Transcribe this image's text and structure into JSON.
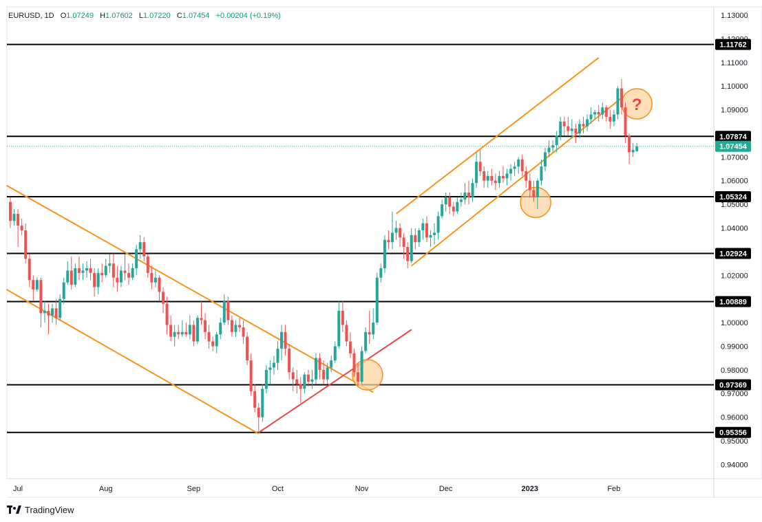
{
  "legend": {
    "symbol": "EURUSD, 1D",
    "o_label": "O",
    "o_value": "1.07249",
    "h_label": "H",
    "h_value": "1.07602",
    "l_label": "L",
    "l_value": "1.07220",
    "c_label": "C",
    "c_value": "1.07454",
    "change": "+0.00204 (+0.19%)"
  },
  "brand": {
    "name": "TradingView",
    "icon": "tradingview-logo-icon"
  },
  "colors": {
    "up": "#26a69a",
    "down": "#ef5350",
    "channel": "#f7931a",
    "trendline": "#e84545",
    "level": "#000000",
    "circle_fill": "#fbd3a1",
    "circle_stroke": "#f7931a",
    "question": "#e84545",
    "current_price": "#22ab94"
  },
  "chart_data": {
    "type": "candlestick",
    "symbol": "EURUSD",
    "timeframe": "1D",
    "ylim": [
      0.934,
      1.1335
    ],
    "y_ticks": [
      "1.13000",
      "1.12000",
      "1.11000",
      "1.10000",
      "1.09000",
      "1.07000",
      "1.06000",
      "1.05000",
      "1.04000",
      "1.02000",
      "1.00000",
      "0.99000",
      "0.98000",
      "0.97000",
      "0.96000",
      "0.95000",
      "0.94000"
    ],
    "x_labels": [
      {
        "label": "Jul",
        "index": 0
      },
      {
        "label": "Aug",
        "index": 23
      },
      {
        "label": "Sep",
        "index": 46
      },
      {
        "label": "Oct",
        "index": 68
      },
      {
        "label": "Nov",
        "index": 90
      },
      {
        "label": "Dec",
        "index": 112
      },
      {
        "label": "2023",
        "index": 134
      },
      {
        "label": "Feb",
        "index": 156
      }
    ],
    "x_count": 176,
    "levels": [
      {
        "label": "1.11762",
        "value": 1.11762
      },
      {
        "label": "1.07874",
        "value": 1.07874
      },
      {
        "label": "1.05324",
        "value": 1.05324
      },
      {
        "label": "1.02924",
        "value": 1.02924
      },
      {
        "label": "1.00889",
        "value": 1.00889
      },
      {
        "label": "0.97369",
        "value": 0.97369
      },
      {
        "label": "0.95356",
        "value": 0.95356
      }
    ],
    "current_price": {
      "label": "1.07454",
      "value": 1.07454
    },
    "trend_lines": [
      {
        "kind": "channel",
        "x1": -1,
        "y1": 1.058,
        "x2": 95,
        "y2": 0.9705
      },
      {
        "kind": "channel",
        "x1": -1,
        "y1": 1.014,
        "x2": 65,
        "y2": 0.953
      },
      {
        "kind": "channel",
        "x1": 101,
        "y1": 1.046,
        "x2": 154,
        "y2": 1.112
      },
      {
        "kind": "channel",
        "x1": 105,
        "y1": 1.024,
        "x2": 160,
        "y2": 1.095
      },
      {
        "kind": "trend",
        "x1": 65,
        "y1": 0.9535,
        "x2": 105,
        "y2": 0.997
      }
    ],
    "circles": [
      {
        "x": 93.5,
        "y": 0.9779,
        "label": ""
      },
      {
        "x": 137.5,
        "y": 1.0508,
        "label": ""
      },
      {
        "x": 164,
        "y": 1.0925,
        "label": "?"
      }
    ],
    "candles": [
      [
        1.051,
        1.053,
        1.04,
        1.043
      ],
      [
        1.043,
        1.048,
        1.041,
        1.046
      ],
      [
        1.046,
        1.048,
        1.032,
        1.041
      ],
      [
        1.041,
        1.044,
        1.037,
        1.039
      ],
      [
        1.039,
        1.042,
        1.025,
        1.027
      ],
      [
        1.027,
        1.029,
        1.015,
        1.018
      ],
      [
        1.018,
        1.02,
        1.009,
        1.014
      ],
      [
        1.014,
        1.019,
        1.013,
        1.018
      ],
      [
        1.018,
        1.019,
        0.998,
        1.004
      ],
      [
        1.004,
        1.009,
        1.0,
        1.005
      ],
      [
        1.005,
        1.008,
        0.995,
        1.003
      ],
      [
        1.003,
        1.008,
        1.0,
        1.006
      ],
      [
        1.006,
        1.01,
        0.999,
        1.002
      ],
      [
        1.002,
        1.012,
        1.001,
        1.01
      ],
      [
        1.01,
        1.019,
        1.008,
        1.017
      ],
      [
        1.017,
        1.026,
        1.016,
        1.022
      ],
      [
        1.022,
        1.028,
        1.014,
        1.016
      ],
      [
        1.016,
        1.025,
        1.015,
        1.023
      ],
      [
        1.023,
        1.028,
        1.018,
        1.021
      ],
      [
        1.021,
        1.025,
        1.018,
        1.022
      ],
      [
        1.022,
        1.026,
        1.019,
        1.023
      ],
      [
        1.023,
        1.027,
        1.018,
        1.021
      ],
      [
        1.021,
        1.023,
        1.011,
        1.015
      ],
      [
        1.015,
        1.023,
        1.012,
        1.021
      ],
      [
        1.021,
        1.025,
        1.017,
        1.02
      ],
      [
        1.02,
        1.027,
        1.019,
        1.024
      ],
      [
        1.024,
        1.029,
        1.021,
        1.025
      ],
      [
        1.025,
        1.029,
        1.015,
        1.019
      ],
      [
        1.019,
        1.024,
        1.013,
        1.017
      ],
      [
        1.017,
        1.024,
        1.015,
        1.022
      ],
      [
        1.022,
        1.029,
        1.018,
        1.021
      ],
      [
        1.021,
        1.025,
        1.016,
        1.019
      ],
      [
        1.019,
        1.025,
        1.018,
        1.023
      ],
      [
        1.023,
        1.033,
        1.02,
        1.031
      ],
      [
        1.031,
        1.037,
        1.027,
        1.034
      ],
      [
        1.034,
        1.036,
        1.026,
        1.028
      ],
      [
        1.028,
        1.029,
        1.019,
        1.021
      ],
      [
        1.021,
        1.024,
        1.014,
        1.017
      ],
      [
        1.017,
        1.022,
        1.015,
        1.019
      ],
      [
        1.019,
        1.02,
        1.009,
        1.013
      ],
      [
        1.013,
        1.015,
        1.004,
        1.008
      ],
      [
        1.008,
        1.011,
        0.995,
        0.999
      ],
      [
        0.999,
        1.003,
        0.992,
        0.994
      ],
      [
        0.994,
        0.999,
        0.99,
        0.996
      ],
      [
        0.996,
        0.999,
        0.993,
        0.995
      ],
      [
        0.995,
        1.001,
        0.994,
        0.996
      ],
      [
        0.996,
        1.0,
        0.994,
        0.995
      ],
      [
        0.995,
        1.003,
        0.993,
        0.999
      ],
      [
        0.999,
        1.001,
        0.99,
        0.992
      ],
      [
        0.992,
        1.003,
        0.991,
        1.002
      ],
      [
        1.002,
        1.009,
        0.999,
        1.001
      ],
      [
        1.001,
        1.004,
        0.993,
        0.996
      ],
      [
        0.996,
        0.999,
        0.989,
        0.992
      ],
      [
        0.992,
        0.994,
        0.988,
        0.99
      ],
      [
        0.99,
        0.996,
        0.987,
        0.995
      ],
      [
        0.995,
        1.002,
        0.993,
        1.0
      ],
      [
        1.0,
        1.012,
        0.999,
        1.009
      ],
      [
        1.009,
        1.011,
        0.999,
        1.001
      ],
      [
        1.001,
        1.003,
        0.994,
        0.996
      ],
      [
        0.996,
        1.001,
        0.994,
        0.999
      ],
      [
        0.999,
        1.002,
        0.996,
        0.998
      ],
      [
        0.998,
        1.001,
        0.991,
        0.994
      ],
      [
        0.994,
        0.996,
        0.982,
        0.984
      ],
      [
        0.984,
        0.987,
        0.969,
        0.971
      ],
      [
        0.971,
        0.974,
        0.962,
        0.964
      ],
      [
        0.964,
        0.966,
        0.954,
        0.96
      ],
      [
        0.96,
        0.974,
        0.958,
        0.972
      ],
      [
        0.972,
        0.982,
        0.97,
        0.98
      ],
      [
        0.98,
        0.984,
        0.974,
        0.981
      ],
      [
        0.981,
        0.986,
        0.978,
        0.983
      ],
      [
        0.983,
        0.992,
        0.98,
        0.989
      ],
      [
        0.989,
        0.999,
        0.984,
        0.996
      ],
      [
        0.996,
        0.999,
        0.986,
        0.989
      ],
      [
        0.989,
        0.991,
        0.976,
        0.979
      ],
      [
        0.979,
        0.981,
        0.971,
        0.976
      ],
      [
        0.976,
        0.98,
        0.97,
        0.974
      ],
      [
        0.974,
        0.977,
        0.966,
        0.972
      ],
      [
        0.972,
        0.979,
        0.97,
        0.978
      ],
      [
        0.978,
        0.98,
        0.973,
        0.975
      ],
      [
        0.975,
        0.98,
        0.972,
        0.976
      ],
      [
        0.976,
        0.987,
        0.974,
        0.985
      ],
      [
        0.985,
        0.987,
        0.976,
        0.98
      ],
      [
        0.98,
        0.984,
        0.974,
        0.976
      ],
      [
        0.976,
        0.983,
        0.974,
        0.981
      ],
      [
        0.981,
        0.986,
        0.979,
        0.984
      ],
      [
        0.984,
        0.992,
        0.983,
        0.99
      ],
      [
        0.99,
        1.009,
        0.989,
        1.005
      ],
      [
        1.005,
        1.009,
        0.996,
        0.999
      ],
      [
        0.999,
        1.001,
        0.99,
        0.992
      ],
      [
        0.992,
        0.996,
        0.985,
        0.987
      ],
      [
        0.987,
        0.989,
        0.977,
        0.979
      ],
      [
        0.979,
        0.983,
        0.973,
        0.975
      ],
      [
        0.975,
        0.99,
        0.974,
        0.988
      ],
      [
        0.988,
        0.998,
        0.987,
        0.996
      ],
      [
        0.996,
        1.005,
        0.991,
        0.995
      ],
      [
        0.995,
        1.006,
        0.993,
        1.0
      ],
      [
        1.0,
        1.021,
        0.999,
        1.019
      ],
      [
        1.019,
        1.025,
        1.017,
        1.023
      ],
      [
        1.023,
        1.037,
        1.021,
        1.035
      ],
      [
        1.035,
        1.039,
        1.031,
        1.034
      ],
      [
        1.034,
        1.047,
        1.031,
        1.038
      ],
      [
        1.038,
        1.043,
        1.035,
        1.04
      ],
      [
        1.04,
        1.042,
        1.032,
        1.036
      ],
      [
        1.036,
        1.038,
        1.027,
        1.032
      ],
      [
        1.032,
        1.034,
        1.023,
        1.026
      ],
      [
        1.026,
        1.04,
        1.025,
        1.037
      ],
      [
        1.037,
        1.04,
        1.031,
        1.034
      ],
      [
        1.034,
        1.04,
        1.032,
        1.039
      ],
      [
        1.039,
        1.044,
        1.035,
        1.042
      ],
      [
        1.042,
        1.045,
        1.034,
        1.036
      ],
      [
        1.036,
        1.039,
        1.032,
        1.037
      ],
      [
        1.037,
        1.042,
        1.033,
        1.038
      ],
      [
        1.038,
        1.047,
        1.035,
        1.045
      ],
      [
        1.045,
        1.052,
        1.044,
        1.05
      ],
      [
        1.05,
        1.055,
        1.047,
        1.053
      ],
      [
        1.053,
        1.055,
        1.046,
        1.049
      ],
      [
        1.049,
        1.051,
        1.045,
        1.047
      ],
      [
        1.047,
        1.053,
        1.046,
        1.051
      ],
      [
        1.051,
        1.055,
        1.049,
        1.052
      ],
      [
        1.052,
        1.059,
        1.05,
        1.055
      ],
      [
        1.055,
        1.06,
        1.05,
        1.053
      ],
      [
        1.053,
        1.061,
        1.051,
        1.059
      ],
      [
        1.059,
        1.072,
        1.057,
        1.068
      ],
      [
        1.068,
        1.073,
        1.062,
        1.064
      ],
      [
        1.064,
        1.066,
        1.057,
        1.06
      ],
      [
        1.06,
        1.064,
        1.057,
        1.062
      ],
      [
        1.062,
        1.065,
        1.058,
        1.06
      ],
      [
        1.06,
        1.063,
        1.056,
        1.059
      ],
      [
        1.059,
        1.064,
        1.057,
        1.062
      ],
      [
        1.062,
        1.066,
        1.059,
        1.061
      ],
      [
        1.061,
        1.065,
        1.058,
        1.063
      ],
      [
        1.063,
        1.067,
        1.06,
        1.065
      ],
      [
        1.065,
        1.068,
        1.062,
        1.066
      ],
      [
        1.066,
        1.07,
        1.063,
        1.069
      ],
      [
        1.069,
        1.071,
        1.062,
        1.064
      ],
      [
        1.064,
        1.066,
        1.057,
        1.06
      ],
      [
        1.06,
        1.063,
        1.053,
        1.056
      ],
      [
        1.056,
        1.06,
        1.051,
        1.053
      ],
      [
        1.053,
        1.061,
        1.048,
        1.06
      ],
      [
        1.06,
        1.069,
        1.058,
        1.066
      ],
      [
        1.066,
        1.074,
        1.064,
        1.072
      ],
      [
        1.072,
        1.077,
        1.07,
        1.074
      ],
      [
        1.074,
        1.077,
        1.072,
        1.075
      ],
      [
        1.075,
        1.081,
        1.072,
        1.079
      ],
      [
        1.079,
        1.087,
        1.077,
        1.085
      ],
      [
        1.085,
        1.087,
        1.079,
        1.083
      ],
      [
        1.083,
        1.087,
        1.079,
        1.081
      ],
      [
        1.081,
        1.086,
        1.078,
        1.082
      ],
      [
        1.082,
        1.084,
        1.076,
        1.08
      ],
      [
        1.08,
        1.086,
        1.078,
        1.084
      ],
      [
        1.084,
        1.087,
        1.08,
        1.083
      ],
      [
        1.083,
        1.088,
        1.081,
        1.086
      ],
      [
        1.086,
        1.091,
        1.084,
        1.088
      ],
      [
        1.088,
        1.09,
        1.086,
        1.089
      ],
      [
        1.089,
        1.092,
        1.085,
        1.088
      ],
      [
        1.088,
        1.093,
        1.086,
        1.091
      ],
      [
        1.091,
        1.092,
        1.085,
        1.087
      ],
      [
        1.087,
        1.09,
        1.082,
        1.085
      ],
      [
        1.085,
        1.09,
        1.083,
        1.088
      ],
      [
        1.088,
        1.1,
        1.086,
        1.099
      ],
      [
        1.099,
        1.103,
        1.088,
        1.091
      ],
      [
        1.091,
        1.093,
        1.076,
        1.079
      ],
      [
        1.079,
        1.08,
        1.067,
        1.072
      ],
      [
        1.072,
        1.076,
        1.07,
        1.073
      ],
      [
        1.07249,
        1.07602,
        1.0722,
        1.07454
      ]
    ]
  }
}
